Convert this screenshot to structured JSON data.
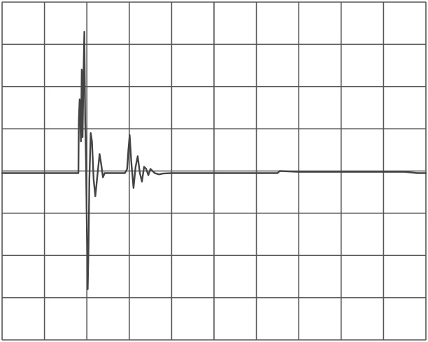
{
  "chart_data": {
    "type": "line",
    "title": "",
    "xlabel": "",
    "ylabel": "",
    "grid": true,
    "grid_divisions": {
      "x": 10,
      "y": 8
    },
    "xlim": [
      0,
      10
    ],
    "ylim": [
      -4,
      4
    ],
    "colors": {
      "background": "#ffffff",
      "grid": "#555555",
      "trace": "#444444",
      "baseline": "#555555"
    },
    "baseline_y": 0.0,
    "baseline_x_range": [
      0,
      1.82
    ],
    "series": [
      {
        "points": [
          [
            0.0,
            -0.05
          ],
          [
            1.2,
            -0.05
          ],
          [
            1.8,
            -0.05
          ],
          [
            1.81,
            1.2
          ],
          [
            1.83,
            1.7
          ],
          [
            1.86,
            0.7
          ],
          [
            1.88,
            2.4
          ],
          [
            1.9,
            0.8
          ],
          [
            1.92,
            2.3
          ],
          [
            1.94,
            3.3
          ],
          [
            1.96,
            1.2
          ],
          [
            1.98,
            0.2
          ],
          [
            2.0,
            -1.4
          ],
          [
            2.02,
            -2.8
          ],
          [
            2.04,
            -1.8
          ],
          [
            2.06,
            -0.2
          ],
          [
            2.09,
            0.9
          ],
          [
            2.12,
            0.7
          ],
          [
            2.16,
            -0.2
          ],
          [
            2.2,
            -0.6
          ],
          [
            2.25,
            -0.1
          ],
          [
            2.3,
            0.4
          ],
          [
            2.34,
            0.15
          ],
          [
            2.38,
            -0.15
          ],
          [
            2.42,
            -0.05
          ],
          [
            2.9,
            -0.05
          ],
          [
            2.95,
            0.05
          ],
          [
            2.98,
            0.5
          ],
          [
            3.01,
            0.85
          ],
          [
            3.05,
            0.2
          ],
          [
            3.1,
            -0.4
          ],
          [
            3.15,
            0.1
          ],
          [
            3.2,
            0.35
          ],
          [
            3.25,
            -0.05
          ],
          [
            3.3,
            -0.25
          ],
          [
            3.35,
            0.1
          ],
          [
            3.4,
            0.05
          ],
          [
            3.45,
            -0.1
          ],
          [
            3.5,
            0.05
          ],
          [
            3.6,
            -0.05
          ],
          [
            3.7,
            -0.08
          ],
          [
            3.8,
            -0.06
          ],
          [
            4.0,
            -0.05
          ],
          [
            5.0,
            -0.05
          ],
          [
            6.5,
            -0.05
          ],
          [
            6.55,
            0.0
          ],
          [
            7.0,
            -0.02
          ],
          [
            8.0,
            -0.02
          ],
          [
            9.0,
            -0.02
          ],
          [
            9.5,
            -0.02
          ],
          [
            9.8,
            -0.05
          ],
          [
            10.0,
            -0.05
          ]
        ]
      }
    ]
  }
}
